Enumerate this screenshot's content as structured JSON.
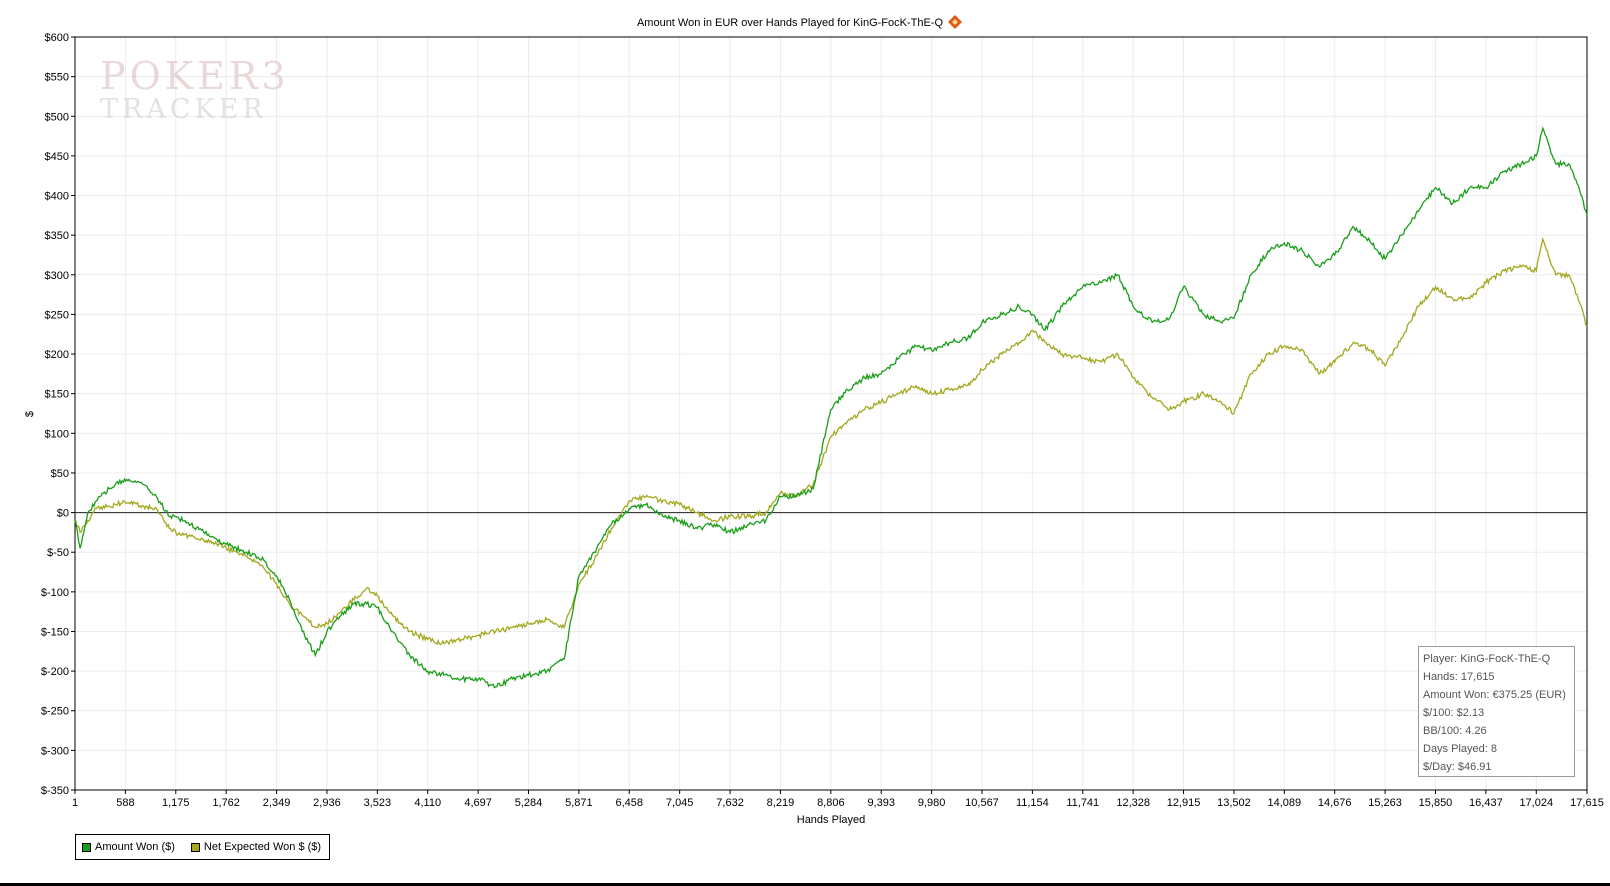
{
  "chart_data": {
    "type": "line",
    "title": "Amount Won in EUR over Hands Played for KinG-FocK-ThE-Q",
    "xlabel": "Hands Played",
    "ylabel": "$",
    "xlim": [
      1,
      17615
    ],
    "ylim": [
      -350,
      600
    ],
    "x_ticks": [
      1,
      588,
      1175,
      1762,
      2349,
      2936,
      3523,
      4110,
      4697,
      5284,
      5871,
      6458,
      7045,
      7632,
      8219,
      8806,
      9393,
      9980,
      10567,
      11154,
      11741,
      12328,
      12915,
      13502,
      14089,
      14676,
      15263,
      15850,
      16437,
      17024,
      17615
    ],
    "x_tick_labels": [
      "1",
      "588",
      "1,175",
      "1,762",
      "2,349",
      "2,936",
      "3,523",
      "4,110",
      "4,697",
      "5,284",
      "5,871",
      "6,458",
      "7,045",
      "7,632",
      "8,219",
      "8,806",
      "9,393",
      "9,980",
      "10,567",
      "11,154",
      "11,741",
      "12,328",
      "12,915",
      "13,502",
      "14,089",
      "14,676",
      "15,263",
      "15,850",
      "16,437",
      "17,024",
      "17,615"
    ],
    "y_ticks": [
      600,
      550,
      500,
      450,
      400,
      350,
      300,
      250,
      200,
      150,
      100,
      50,
      0,
      -50,
      -100,
      -150,
      -200,
      -250,
      -300,
      -350
    ],
    "y_tick_labels": [
      "$600",
      "$550",
      "$500",
      "$450",
      "$400",
      "$350",
      "$300",
      "$250",
      "$200",
      "$150",
      "$100",
      "$50",
      "$0",
      "$-50",
      "$-100",
      "$-150",
      "$-200",
      "$-250",
      "$-300",
      "$-350"
    ],
    "grid": true,
    "legend_position": "bottom-left",
    "series": [
      {
        "name": "Amount Won ($)",
        "color": "#1a9e1a",
        "x": [
          1,
          60,
          150,
          250,
          400,
          550,
          700,
          800,
          950,
          1100,
          1175,
          1350,
          1500,
          1762,
          2000,
          2200,
          2349,
          2500,
          2650,
          2800,
          2936,
          3100,
          3250,
          3400,
          3523,
          3700,
          3900,
          4110,
          4300,
          4500,
          4697,
          4900,
          5100,
          5284,
          5500,
          5700,
          5871,
          6050,
          6250,
          6458,
          6650,
          6850,
          7045,
          7250,
          7450,
          7632,
          7850,
          8050,
          8219,
          8400,
          8600,
          8806,
          9000,
          9200,
          9393,
          9600,
          9800,
          9980,
          10200,
          10400,
          10567,
          10800,
          11000,
          11154,
          11300,
          11500,
          11741,
          11950,
          12150,
          12328,
          12550,
          12750,
          12915,
          13150,
          13350,
          13502,
          13700,
          13900,
          14089,
          14300,
          14500,
          14676,
          14900,
          15100,
          15263,
          15450,
          15650,
          15850,
          16050,
          16250,
          16437,
          16650,
          16850,
          17024,
          17100,
          17250,
          17400,
          17500,
          17615
        ],
        "y": [
          -10,
          -45,
          0,
          15,
          30,
          40,
          40,
          35,
          20,
          -5,
          -5,
          -15,
          -25,
          -40,
          -50,
          -60,
          -80,
          -110,
          -150,
          -180,
          -150,
          -130,
          -115,
          -115,
          -120,
          -150,
          -180,
          -200,
          -205,
          -210,
          -210,
          -220,
          -210,
          -205,
          -200,
          -185,
          -80,
          -50,
          -15,
          5,
          10,
          -5,
          -10,
          -20,
          -15,
          -25,
          -15,
          -10,
          20,
          20,
          30,
          130,
          155,
          170,
          175,
          195,
          210,
          205,
          215,
          220,
          240,
          250,
          260,
          250,
          230,
          260,
          285,
          290,
          300,
          260,
          240,
          245,
          285,
          250,
          240,
          245,
          300,
          330,
          340,
          330,
          310,
          325,
          360,
          340,
          320,
          350,
          380,
          410,
          390,
          410,
          410,
          430,
          440,
          450,
          485,
          440,
          440,
          415,
          375
        ]
      },
      {
        "name": "Net Expected Won $ ($)",
        "color": "#a3a81e",
        "x": [
          1,
          60,
          150,
          250,
          400,
          550,
          700,
          800,
          950,
          1100,
          1175,
          1350,
          1500,
          1762,
          2000,
          2200,
          2349,
          2500,
          2650,
          2800,
          2936,
          3100,
          3250,
          3400,
          3523,
          3700,
          3900,
          4110,
          4300,
          4500,
          4697,
          4900,
          5100,
          5284,
          5500,
          5700,
          5871,
          6050,
          6250,
          6458,
          6650,
          6850,
          7045,
          7250,
          7450,
          7632,
          7850,
          8050,
          8219,
          8400,
          8600,
          8806,
          9000,
          9200,
          9393,
          9600,
          9800,
          9980,
          10200,
          10400,
          10567,
          10800,
          11000,
          11154,
          11300,
          11500,
          11741,
          11950,
          12150,
          12328,
          12550,
          12750,
          12915,
          13150,
          13350,
          13502,
          13700,
          13900,
          14089,
          14300,
          14500,
          14676,
          14900,
          15100,
          15263,
          15450,
          15650,
          15850,
          16050,
          16250,
          16437,
          16650,
          16850,
          17024,
          17100,
          17250,
          17400,
          17500,
          17615
        ],
        "y": [
          -10,
          -25,
          -10,
          5,
          8,
          12,
          12,
          8,
          5,
          -20,
          -25,
          -30,
          -35,
          -45,
          -55,
          -70,
          -90,
          -115,
          -130,
          -145,
          -140,
          -125,
          -110,
          -95,
          -105,
          -130,
          -150,
          -160,
          -165,
          -160,
          -155,
          -150,
          -145,
          -140,
          -135,
          -145,
          -90,
          -60,
          -20,
          15,
          20,
          15,
          10,
          0,
          -10,
          -5,
          -5,
          0,
          25,
          20,
          35,
          95,
          115,
          130,
          140,
          150,
          160,
          150,
          155,
          160,
          180,
          200,
          215,
          230,
          215,
          200,
          195,
          190,
          200,
          170,
          145,
          130,
          140,
          150,
          140,
          125,
          175,
          200,
          210,
          205,
          175,
          190,
          215,
          205,
          185,
          220,
          260,
          285,
          270,
          270,
          290,
          305,
          310,
          305,
          345,
          300,
          300,
          275,
          235
        ]
      }
    ]
  },
  "stats": {
    "player": "Player: KinG-FocK-ThE-Q",
    "hands": "Hands: 17,615",
    "amount_won": "Amount Won: €375.25 (EUR)",
    "dollars_per_100": "$/100: $2.13",
    "bb_per_100": "BB/100: 4.26",
    "days_played": "Days Played: 8",
    "dollars_per_day": "$/Day: $46.91"
  },
  "watermark": {
    "line1": "POKER3",
    "line2": "TRACKER"
  }
}
